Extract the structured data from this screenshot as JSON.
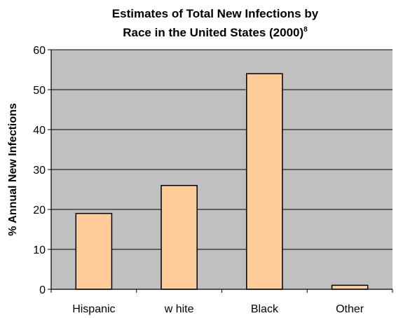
{
  "chart_data": {
    "type": "bar",
    "title_line1": "Estimates of Total New Infections by",
    "title_line2": "Race in the United States (2000)",
    "title_superscript": "8",
    "xlabel": "",
    "ylabel": "% Annual New Infections",
    "categories": [
      "Hispanic",
      "w hite",
      "Black",
      "Other"
    ],
    "values": [
      19,
      26,
      54,
      1
    ],
    "ylim": [
      0,
      60
    ],
    "yticks": [
      0,
      10,
      20,
      30,
      40,
      50,
      60
    ],
    "grid": true,
    "legend": "none",
    "colors": {
      "bar_fill": "#ffcc99",
      "bar_stroke": "#000000",
      "plot_background": "#c0c0c0",
      "gridline": "#000000"
    }
  }
}
